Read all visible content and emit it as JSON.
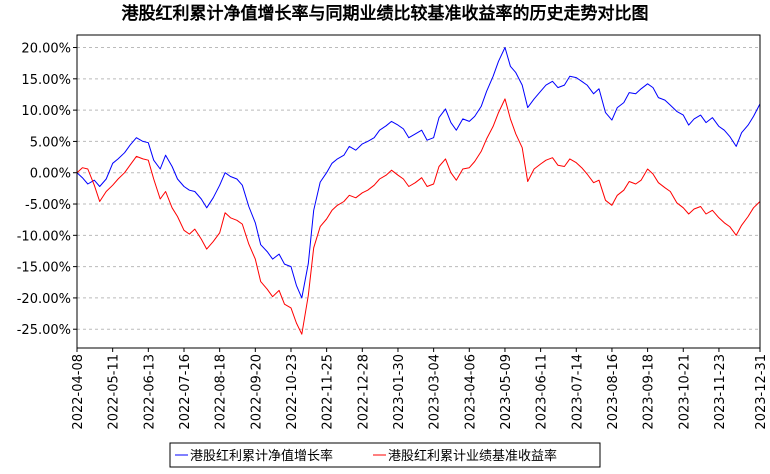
{
  "chart_data": {
    "type": "line",
    "title": "港股红利累计净值增长率与同期业绩比较基准收益率的历史走势对比图",
    "xlabel": "",
    "ylabel": "",
    "ylim": [
      -28,
      22
    ],
    "y_ticks": [
      20,
      15,
      10,
      5,
      0,
      -5,
      -10,
      -15,
      -20,
      -25
    ],
    "y_tick_labels": [
      "20.00%",
      "15.00%",
      "10.00%",
      "5.00%",
      "0.00%",
      "-5.00%",
      "-10.00%",
      "-15.00%",
      "-20.00%",
      "-25.00%"
    ],
    "x_range": [
      "2022-04-08",
      "2023-12-31"
    ],
    "x_tick_labels": [
      "2022-04-08",
      "2022-05-11",
      "2022-06-13",
      "2022-07-16",
      "2022-08-18",
      "2022-09-20",
      "2022-10-23",
      "2022-11-25",
      "2022-12-28",
      "2023-01-30",
      "2023-03-04",
      "2023-04-06",
      "2023-05-09",
      "2023-06-11",
      "2023-07-14",
      "2023-08-16",
      "2023-09-18",
      "2023-10-21",
      "2023-11-23",
      "2023-12-31"
    ],
    "grid": true,
    "legend_position": "bottom",
    "series": [
      {
        "name": "港股红利累计净值增长率",
        "color": "#0000ff",
        "points": [
          [
            "2022-04-08",
            0.0
          ],
          [
            "2022-04-13",
            -0.8
          ],
          [
            "2022-04-18",
            -1.8
          ],
          [
            "2022-04-24",
            -1.2
          ],
          [
            "2022-04-29",
            -2.2
          ],
          [
            "2022-05-05",
            -1.0
          ],
          [
            "2022-05-11",
            1.5
          ],
          [
            "2022-05-16",
            2.2
          ],
          [
            "2022-05-22",
            3.2
          ],
          [
            "2022-05-27",
            4.4
          ],
          [
            "2022-06-02",
            5.6
          ],
          [
            "2022-06-08",
            5.0
          ],
          [
            "2022-06-13",
            4.8
          ],
          [
            "2022-06-18",
            2.0
          ],
          [
            "2022-06-24",
            0.6
          ],
          [
            "2022-06-29",
            2.8
          ],
          [
            "2022-07-05",
            1.0
          ],
          [
            "2022-07-10",
            -1.0
          ],
          [
            "2022-07-16",
            -2.2
          ],
          [
            "2022-07-21",
            -2.8
          ],
          [
            "2022-07-26",
            -3.0
          ],
          [
            "2022-08-01",
            -4.2
          ],
          [
            "2022-08-06",
            -5.6
          ],
          [
            "2022-08-12",
            -4.0
          ],
          [
            "2022-08-18",
            -2.0
          ],
          [
            "2022-08-23",
            0.0
          ],
          [
            "2022-08-28",
            -0.6
          ],
          [
            "2022-09-03",
            -1.0
          ],
          [
            "2022-09-08",
            -2.0
          ],
          [
            "2022-09-14",
            -5.4
          ],
          [
            "2022-09-20",
            -8.0
          ],
          [
            "2022-09-25",
            -11.5
          ],
          [
            "2022-10-01",
            -12.6
          ],
          [
            "2022-10-06",
            -13.8
          ],
          [
            "2022-10-12",
            -13.0
          ],
          [
            "2022-10-17",
            -14.6
          ],
          [
            "2022-10-23",
            -15.0
          ],
          [
            "2022-10-28",
            -18.0
          ],
          [
            "2022-11-02",
            -20.0
          ],
          [
            "2022-11-08",
            -14.5
          ],
          [
            "2022-11-13",
            -6.0
          ],
          [
            "2022-11-19",
            -1.5
          ],
          [
            "2022-11-25",
            0.0
          ],
          [
            "2022-11-30",
            1.5
          ],
          [
            "2022-12-05",
            2.2
          ],
          [
            "2022-12-11",
            2.8
          ],
          [
            "2022-12-16",
            4.2
          ],
          [
            "2022-12-22",
            3.6
          ],
          [
            "2022-12-28",
            4.6
          ],
          [
            "2023-01-02",
            5.0
          ],
          [
            "2023-01-08",
            5.6
          ],
          [
            "2023-01-13",
            6.8
          ],
          [
            "2023-01-19",
            7.5
          ],
          [
            "2023-01-24",
            8.2
          ],
          [
            "2023-01-30",
            7.6
          ],
          [
            "2023-02-04",
            7.0
          ],
          [
            "2023-02-09",
            5.6
          ],
          [
            "2023-02-15",
            6.2
          ],
          [
            "2023-02-21",
            6.8
          ],
          [
            "2023-02-26",
            5.2
          ],
          [
            "2023-03-04",
            5.6
          ],
          [
            "2023-03-09",
            8.8
          ],
          [
            "2023-03-15",
            10.2
          ],
          [
            "2023-03-20",
            8.0
          ],
          [
            "2023-03-25",
            6.8
          ],
          [
            "2023-03-31",
            8.6
          ],
          [
            "2023-04-06",
            8.2
          ],
          [
            "2023-04-11",
            9.0
          ],
          [
            "2023-04-17",
            10.6
          ],
          [
            "2023-04-22",
            13.0
          ],
          [
            "2023-04-28",
            15.4
          ],
          [
            "2023-05-03",
            17.8
          ],
          [
            "2023-05-09",
            20.0
          ],
          [
            "2023-05-14",
            17.0
          ],
          [
            "2023-05-19",
            16.0
          ],
          [
            "2023-05-25",
            14.0
          ],
          [
            "2023-05-30",
            10.4
          ],
          [
            "2023-06-05",
            11.8
          ],
          [
            "2023-06-11",
            13.0
          ],
          [
            "2023-06-16",
            14.0
          ],
          [
            "2023-06-22",
            14.6
          ],
          [
            "2023-06-27",
            13.6
          ],
          [
            "2023-07-03",
            14.0
          ],
          [
            "2023-07-08",
            15.4
          ],
          [
            "2023-07-14",
            15.2
          ],
          [
            "2023-07-19",
            14.6
          ],
          [
            "2023-07-24",
            14.0
          ],
          [
            "2023-07-30",
            12.6
          ],
          [
            "2023-08-04",
            13.4
          ],
          [
            "2023-08-10",
            9.6
          ],
          [
            "2023-08-16",
            8.4
          ],
          [
            "2023-08-21",
            10.4
          ],
          [
            "2023-08-27",
            11.2
          ],
          [
            "2023-09-01",
            12.8
          ],
          [
            "2023-09-07",
            12.6
          ],
          [
            "2023-09-12",
            13.4
          ],
          [
            "2023-09-18",
            14.2
          ],
          [
            "2023-09-23",
            13.6
          ],
          [
            "2023-09-28",
            12.0
          ],
          [
            "2023-10-04",
            11.6
          ],
          [
            "2023-10-09",
            10.8
          ],
          [
            "2023-10-15",
            9.8
          ],
          [
            "2023-10-21",
            9.2
          ],
          [
            "2023-10-26",
            7.6
          ],
          [
            "2023-10-31",
            8.6
          ],
          [
            "2023-11-06",
            9.2
          ],
          [
            "2023-11-11",
            8.0
          ],
          [
            "2023-11-17",
            8.8
          ],
          [
            "2023-11-23",
            7.4
          ],
          [
            "2023-11-28",
            6.8
          ],
          [
            "2023-12-03",
            5.8
          ],
          [
            "2023-12-09",
            4.2
          ],
          [
            "2023-12-14",
            6.4
          ],
          [
            "2023-12-20",
            7.6
          ],
          [
            "2023-12-25",
            9.0
          ],
          [
            "2023-12-31",
            11.0
          ]
        ]
      },
      {
        "name": "港股红利累计业绩基准收益率",
        "color": "#ff0000",
        "points": [
          [
            "2022-04-08",
            0.0
          ],
          [
            "2022-04-13",
            0.8
          ],
          [
            "2022-04-18",
            0.6
          ],
          [
            "2022-04-24",
            -2.0
          ],
          [
            "2022-04-29",
            -4.6
          ],
          [
            "2022-05-05",
            -3.0
          ],
          [
            "2022-05-11",
            -2.0
          ],
          [
            "2022-05-16",
            -1.0
          ],
          [
            "2022-05-22",
            0.0
          ],
          [
            "2022-05-27",
            1.2
          ],
          [
            "2022-06-02",
            2.6
          ],
          [
            "2022-06-08",
            2.2
          ],
          [
            "2022-06-13",
            2.0
          ],
          [
            "2022-06-18",
            -1.0
          ],
          [
            "2022-06-24",
            -4.2
          ],
          [
            "2022-06-29",
            -3.0
          ],
          [
            "2022-07-05",
            -5.6
          ],
          [
            "2022-07-10",
            -7.0
          ],
          [
            "2022-07-16",
            -9.2
          ],
          [
            "2022-07-21",
            -9.8
          ],
          [
            "2022-07-26",
            -9.0
          ],
          [
            "2022-08-01",
            -10.6
          ],
          [
            "2022-08-06",
            -12.2
          ],
          [
            "2022-08-12",
            -11.0
          ],
          [
            "2022-08-18",
            -9.6
          ],
          [
            "2022-08-23",
            -6.4
          ],
          [
            "2022-08-28",
            -7.2
          ],
          [
            "2022-09-03",
            -7.6
          ],
          [
            "2022-09-08",
            -8.2
          ],
          [
            "2022-09-14",
            -11.4
          ],
          [
            "2022-09-20",
            -13.8
          ],
          [
            "2022-09-25",
            -17.4
          ],
          [
            "2022-10-01",
            -18.6
          ],
          [
            "2022-10-06",
            -19.8
          ],
          [
            "2022-10-12",
            -18.8
          ],
          [
            "2022-10-17",
            -21.0
          ],
          [
            "2022-10-23",
            -21.6
          ],
          [
            "2022-10-28",
            -24.0
          ],
          [
            "2022-11-02",
            -25.8
          ],
          [
            "2022-11-08",
            -19.6
          ],
          [
            "2022-11-13",
            -12.0
          ],
          [
            "2022-11-19",
            -8.6
          ],
          [
            "2022-11-25",
            -7.4
          ],
          [
            "2022-11-30",
            -6.0
          ],
          [
            "2022-12-05",
            -5.2
          ],
          [
            "2022-12-11",
            -4.6
          ],
          [
            "2022-12-16",
            -3.6
          ],
          [
            "2022-12-22",
            -4.0
          ],
          [
            "2022-12-28",
            -3.2
          ],
          [
            "2023-01-02",
            -2.8
          ],
          [
            "2023-01-08",
            -2.0
          ],
          [
            "2023-01-13",
            -1.0
          ],
          [
            "2023-01-19",
            -0.4
          ],
          [
            "2023-01-24",
            0.4
          ],
          [
            "2023-01-30",
            -0.4
          ],
          [
            "2023-02-04",
            -1.0
          ],
          [
            "2023-02-09",
            -2.2
          ],
          [
            "2023-02-15",
            -1.6
          ],
          [
            "2023-02-21",
            -0.8
          ],
          [
            "2023-02-26",
            -2.2
          ],
          [
            "2023-03-04",
            -1.8
          ],
          [
            "2023-03-09",
            1.0
          ],
          [
            "2023-03-15",
            2.2
          ],
          [
            "2023-03-20",
            0.0
          ],
          [
            "2023-03-25",
            -1.2
          ],
          [
            "2023-03-31",
            0.6
          ],
          [
            "2023-04-06",
            0.8
          ],
          [
            "2023-04-11",
            1.8
          ],
          [
            "2023-04-17",
            3.4
          ],
          [
            "2023-04-22",
            5.4
          ],
          [
            "2023-04-28",
            7.4
          ],
          [
            "2023-05-03",
            9.6
          ],
          [
            "2023-05-09",
            11.8
          ],
          [
            "2023-05-14",
            8.6
          ],
          [
            "2023-05-19",
            6.2
          ],
          [
            "2023-05-25",
            4.0
          ],
          [
            "2023-05-30",
            -1.4
          ],
          [
            "2023-06-05",
            0.6
          ],
          [
            "2023-06-11",
            1.4
          ],
          [
            "2023-06-16",
            2.0
          ],
          [
            "2023-06-22",
            2.4
          ],
          [
            "2023-06-27",
            1.2
          ],
          [
            "2023-07-03",
            1.0
          ],
          [
            "2023-07-08",
            2.2
          ],
          [
            "2023-07-14",
            1.6
          ],
          [
            "2023-07-19",
            0.8
          ],
          [
            "2023-07-24",
            -0.2
          ],
          [
            "2023-07-30",
            -1.6
          ],
          [
            "2023-08-04",
            -1.2
          ],
          [
            "2023-08-10",
            -4.4
          ],
          [
            "2023-08-16",
            -5.2
          ],
          [
            "2023-08-21",
            -3.6
          ],
          [
            "2023-08-27",
            -2.8
          ],
          [
            "2023-09-01",
            -1.4
          ],
          [
            "2023-09-07",
            -1.8
          ],
          [
            "2023-09-12",
            -1.2
          ],
          [
            "2023-09-18",
            0.6
          ],
          [
            "2023-09-23",
            -0.2
          ],
          [
            "2023-09-28",
            -1.6
          ],
          [
            "2023-10-04",
            -2.4
          ],
          [
            "2023-10-09",
            -3.0
          ],
          [
            "2023-10-15",
            -4.8
          ],
          [
            "2023-10-21",
            -5.6
          ],
          [
            "2023-10-26",
            -6.6
          ],
          [
            "2023-10-31",
            -5.8
          ],
          [
            "2023-11-06",
            -5.4
          ],
          [
            "2023-11-11",
            -6.6
          ],
          [
            "2023-11-17",
            -6.0
          ],
          [
            "2023-11-23",
            -7.2
          ],
          [
            "2023-11-28",
            -8.0
          ],
          [
            "2023-12-03",
            -8.6
          ],
          [
            "2023-12-09",
            -10.0
          ],
          [
            "2023-12-14",
            -8.4
          ],
          [
            "2023-12-20",
            -7.0
          ],
          [
            "2023-12-25",
            -5.6
          ],
          [
            "2023-12-31",
            -4.6
          ]
        ]
      }
    ]
  }
}
